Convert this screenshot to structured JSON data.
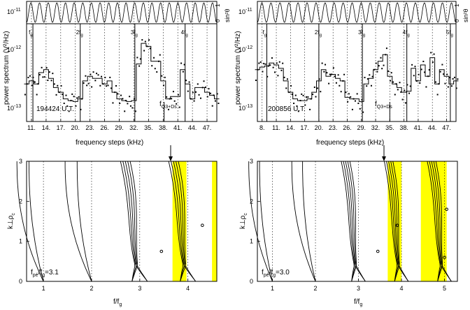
{
  "chart_data": [
    {
      "type": "line",
      "panel": "top-left",
      "title": "",
      "xlabel": "frequency steps (kHz)",
      "ylabel": "power spectrum (V²/Hz)",
      "y2label": "sin²θ",
      "y_scale": "log",
      "ylim": [
        5e-14,
        2e-11
      ],
      "xlim": [
        10,
        49
      ],
      "tick_labels": [
        "11.",
        "14.",
        "17.",
        "20.",
        "23.",
        "26.",
        "29.",
        "32.",
        "35.",
        "38.",
        "41.",
        "44.",
        "47."
      ],
      "y_ticks": [
        {
          "label": "10",
          "exp": "-11",
          "value": 1e-11
        },
        {
          "label": "10",
          "exp": "-12",
          "value": 1e-12
        },
        {
          "label": "10",
          "exp": "-13",
          "value": 1e-13
        }
      ],
      "y2_ticks": [
        "1",
        "0"
      ],
      "timestamp": "194424 U.T.",
      "annotation": {
        "base": "f",
        "sub": "Q3+Ds",
        "x": 38.2
      },
      "harmonics": [
        {
          "base": "f",
          "sub": "g",
          "prefix": "",
          "x": 11.3
        },
        {
          "base": "f",
          "sub": "g",
          "prefix": "2",
          "x": 21.0
        },
        {
          "base": "f",
          "sub": "g",
          "prefix": "3",
          "x": 32.2
        },
        {
          "base": "f",
          "sub": "g",
          "prefix": "4",
          "x": 42.5
        }
      ],
      "series": [
        {
          "values_x": [
            10,
            11,
            12,
            13,
            14,
            15,
            16,
            17,
            18,
            19,
            20,
            21,
            22,
            23,
            24,
            25,
            26,
            27,
            28,
            29,
            30,
            31,
            32,
            33,
            34,
            35,
            36,
            37,
            38,
            39,
            40,
            41,
            42,
            43,
            44,
            45,
            46,
            47,
            48,
            49
          ],
          "values_y": [
            5e-13,
            6e-13,
            5e-13,
            1e-12,
            1.2e-12,
            7e-13,
            4e-13,
            3e-13,
            2e-13,
            1.8e-13,
            1.7e-13,
            2e-13,
            6e-13,
            8e-13,
            7e-13,
            7e-13,
            5e-13,
            6e-13,
            3e-13,
            2e-13,
            1.8e-13,
            1.7e-13,
            1.8e-13,
            1.7e-12,
            6e-12,
            5e-12,
            2e-12,
            2e-12,
            6e-13,
            2e-13,
            2.3e-13,
            2.3e-13,
            1.2e-12,
            5e-13,
            2e-13,
            4e-13,
            4e-13,
            3e-13,
            2.5e-13,
            2e-13
          ]
        }
      ]
    },
    {
      "type": "line",
      "panel": "top-right",
      "title": "",
      "xlabel": "frequency steps (kHz)",
      "ylabel": "power spectrum (V²/Hz)",
      "y2label": "sin²θ",
      "y_scale": "log",
      "ylim": [
        5e-14,
        2e-11
      ],
      "xlim": [
        7,
        49
      ],
      "tick_labels": [
        "8.",
        "11.",
        "14.",
        "17.",
        "20.",
        "23.",
        "26.",
        "29.",
        "32.",
        "35.",
        "38.",
        "41.",
        "44.",
        "47."
      ],
      "y_ticks": [
        {
          "label": "10",
          "exp": "-11",
          "value": 1e-11
        },
        {
          "label": "10",
          "exp": "-12",
          "value": 1e-12
        },
        {
          "label": "10",
          "exp": "-13",
          "value": 1e-13
        }
      ],
      "y2_ticks": [
        "1",
        "0"
      ],
      "timestamp": "200856 U.T.",
      "annotation": {
        "base": "f",
        "sub": "Q3+Ds",
        "x": 35.0
      },
      "harmonics": [
        {
          "base": "f",
          "sub": "g",
          "prefix": "",
          "x": 9.0
        },
        {
          "base": "f",
          "sub": "g",
          "prefix": "2",
          "x": 20.0
        },
        {
          "base": "f",
          "sub": "g",
          "prefix": "3",
          "x": 29.2
        },
        {
          "base": "f",
          "sub": "g",
          "prefix": "4",
          "x": 38.6
        },
        {
          "base": "f",
          "sub": "g",
          "prefix": "5",
          "x": 47.8
        }
      ],
      "series": [
        {
          "values_x": [
            7,
            8,
            9,
            10,
            11,
            12,
            13,
            14,
            15,
            16,
            17,
            18,
            19,
            20,
            21,
            22,
            23,
            24,
            25,
            26,
            27,
            28,
            29,
            30,
            31,
            32,
            33,
            34,
            35,
            36,
            37,
            38,
            39,
            40,
            41,
            42,
            43,
            44,
            45,
            46,
            47,
            48,
            49
          ],
          "values_y": [
            1.2e-12,
            1.4e-12,
            1.5e-12,
            1.8e-12,
            1.6e-12,
            1.3e-12,
            6e-13,
            3e-13,
            2e-13,
            1.8e-13,
            1.8e-13,
            2e-13,
            3e-13,
            6e-13,
            1.2e-12,
            8e-13,
            9e-13,
            7e-13,
            6e-13,
            2.2e-13,
            2e-13,
            2e-13,
            1.7e-13,
            5e-13,
            7e-13,
            1.2e-12,
            2e-12,
            3e-12,
            8e-13,
            5e-13,
            4e-13,
            3e-13,
            3.2e-13,
            1.3e-12,
            6e-13,
            1.6e-12,
            8e-13,
            2.5e-12,
            5e-13,
            1.2e-12,
            8e-13,
            5e-13,
            6e-13
          ]
        }
      ]
    },
    {
      "type": "line",
      "panel": "bottom-left",
      "title": "",
      "xlabel": "f/f",
      "xlabel_sub": "g",
      "ylabel": "k⊥ρ",
      "ylabel_sub": "c",
      "xlim": [
        0.65,
        4.6
      ],
      "ylim": [
        0,
        3
      ],
      "x_ticks": [
        "1",
        "2",
        "3",
        "4"
      ],
      "y_ticks": [
        "0",
        "1",
        "2",
        "3"
      ],
      "ratio_label": {
        "pre": "f",
        "sub": "pé",
        "post": "/f",
        "sub2": "g",
        "value": "=3.1"
      },
      "highlight_bands": [
        [
          3.68,
          3.97
        ],
        [
          4.5,
          4.6
        ]
      ]
    },
    {
      "type": "line",
      "panel": "bottom-right",
      "title": "",
      "xlabel": "f/f",
      "xlabel_sub": "g",
      "ylabel": "k⊥ρ",
      "ylabel_sub": "c",
      "xlim": [
        0.65,
        5.3
      ],
      "ylim": [
        0,
        3
      ],
      "x_ticks": [
        "1",
        "2",
        "3",
        "4",
        "5"
      ],
      "y_ticks": [
        "0",
        "1",
        "2",
        "3"
      ],
      "ratio_label": {
        "pre": "f",
        "sub": "pé",
        "post": "/f",
        "sub2": "g",
        "value": "=3.0"
      },
      "highlight_bands": [
        [
          3.68,
          4.0
        ],
        [
          4.45,
          5.05
        ]
      ]
    }
  ],
  "colors": {
    "axis": "#000000",
    "highlight": "#ffff00",
    "background": "#ffffff"
  }
}
